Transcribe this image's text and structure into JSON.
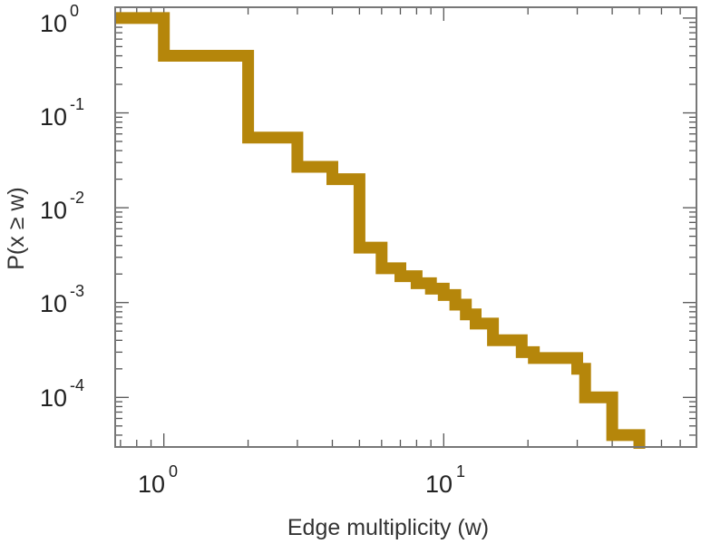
{
  "chart_data": {
    "type": "line",
    "step": true,
    "title": "",
    "xlabel": "Edge multiplicity (w)",
    "ylabel": "P(x ≥ w)",
    "xscale": "log",
    "yscale": "log",
    "xlim": [
      0.67,
      80
    ],
    "ylim": [
      3e-05,
      1.3
    ],
    "grid": false,
    "legend": "none",
    "x_ticks": [
      {
        "base": "10",
        "exp": "0"
      },
      {
        "base": "10",
        "exp": "1"
      }
    ],
    "y_ticks": [
      {
        "base": "10",
        "exp": "0"
      },
      {
        "base": "10",
        "exp": "-1"
      },
      {
        "base": "10",
        "exp": "-2"
      },
      {
        "base": "10",
        "exp": "-3"
      },
      {
        "base": "10",
        "exp": "-4"
      }
    ],
    "series": [
      {
        "color": "#b5860b",
        "x": [
          0.67,
          1,
          2,
          3,
          4,
          5,
          6,
          7,
          8,
          9,
          10,
          11,
          12,
          13,
          15,
          19,
          21,
          30,
          32,
          40,
          50
        ],
        "y": [
          1.0,
          0.4,
          0.055,
          0.027,
          0.02,
          0.0038,
          0.0023,
          0.0019,
          0.0016,
          0.0014,
          0.0012,
          0.00095,
          0.00075,
          0.0006,
          0.0004,
          0.0003,
          0.00026,
          0.0002,
          0.0001,
          4e-05,
          3e-05
        ]
      }
    ]
  }
}
